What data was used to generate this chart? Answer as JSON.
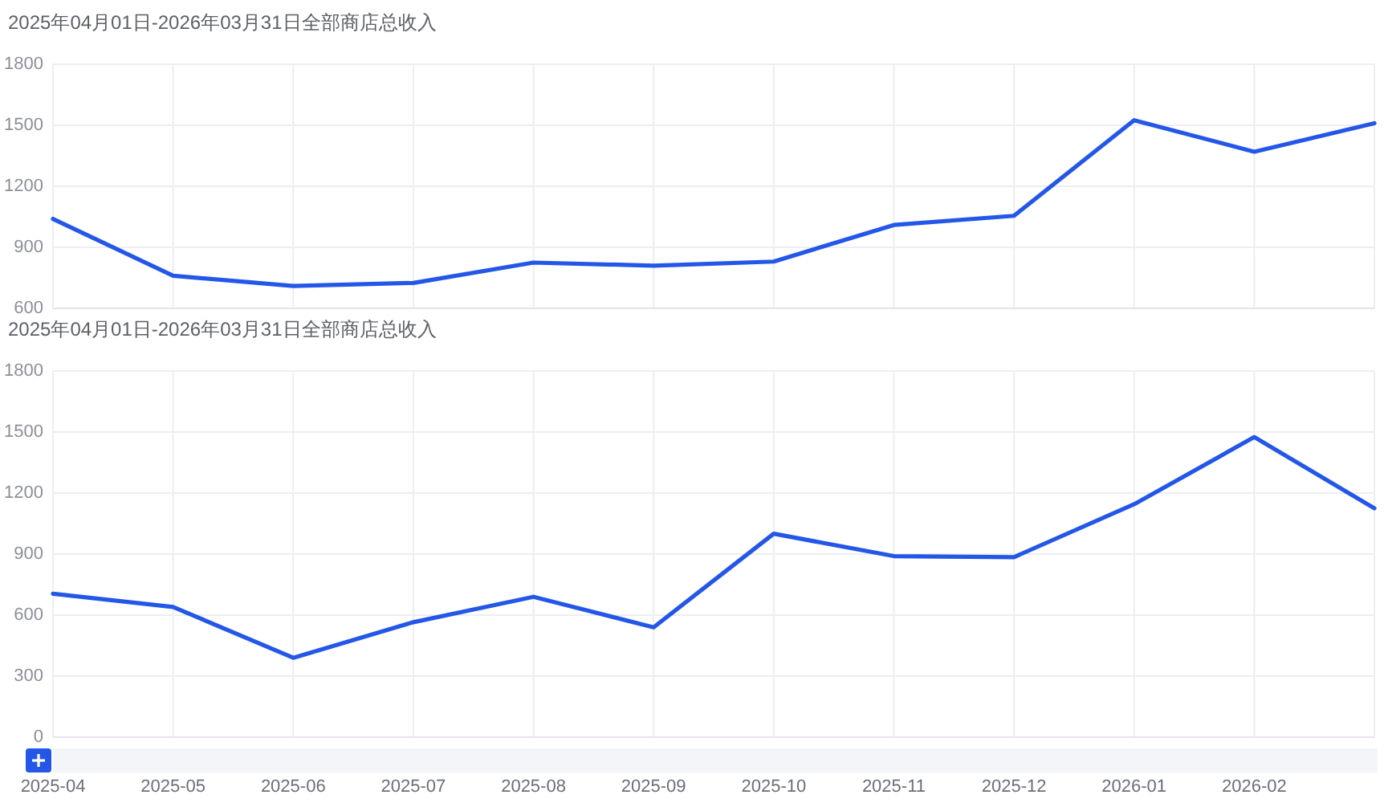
{
  "chart_data": [
    {
      "type": "line",
      "title": "2025年04月01日-2026年03月31日全部商店总收入",
      "categories": [
        "2025-04",
        "2025-05",
        "2025-06",
        "2025-07",
        "2025-08",
        "2025-09",
        "2025-10",
        "2025-11",
        "2025-12",
        "2026-01",
        "2026-02",
        null
      ],
      "series": [
        {
          "color": "#2457e8",
          "values": [
            1040,
            760,
            710,
            725,
            825,
            810,
            830,
            1010,
            1055,
            1525,
            1370,
            1510
          ]
        }
      ],
      "ylim": [
        600,
        1800
      ],
      "yticks": [
        600,
        900,
        1200,
        1500,
        1800
      ],
      "grid": true,
      "tick_labels": "y"
    },
    {
      "type": "line",
      "title": "2025年04月01日-2026年03月31日全部商店总收入",
      "categories": [
        "2025-04",
        "2025-05",
        "2025-06",
        "2025-07",
        "2025-08",
        "2025-09",
        "2025-10",
        "2025-11",
        "2025-12",
        "2026-01",
        "2026-02",
        null
      ],
      "series": [
        {
          "color": "#2457e8",
          "values": [
            705,
            640,
            390,
            565,
            690,
            540,
            1000,
            890,
            885,
            1145,
            1475,
            1125
          ]
        }
      ],
      "ylim": [
        0,
        1800
      ],
      "yticks": [
        0,
        300,
        600,
        900,
        1200,
        1500,
        1800
      ],
      "grid": true
    }
  ]
}
